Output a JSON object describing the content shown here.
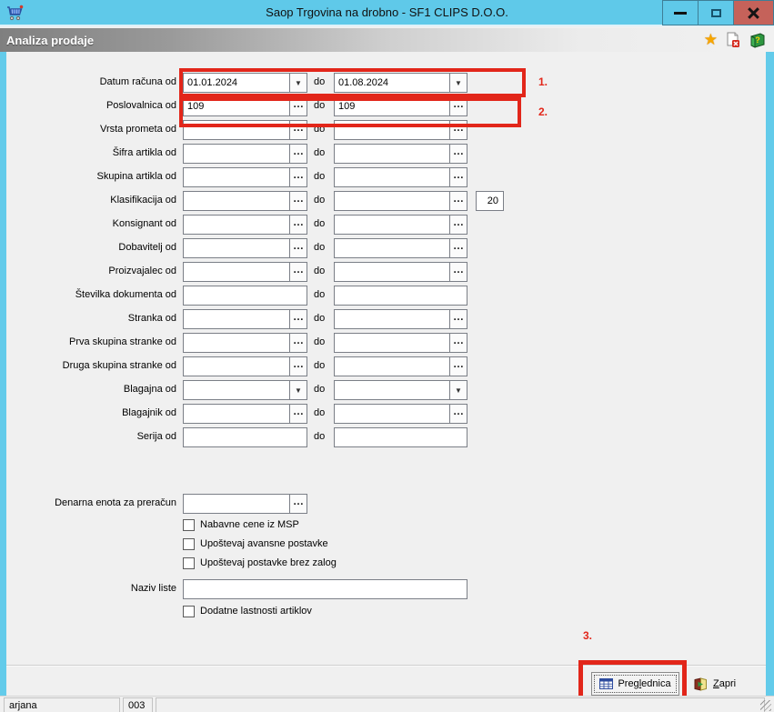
{
  "window": {
    "title": "Saop Trgovina na drobno - SF1 CLIPS D.O.O."
  },
  "header": {
    "title": "Analiza prodaje"
  },
  "icons": {
    "ellipsis": "…",
    "dropdown": "▼"
  },
  "form": {
    "do_label": "do",
    "rows": [
      {
        "label": "Datum računa od",
        "type": "combo",
        "value_from": "01.01.2024",
        "value_to": "01.08.2024"
      },
      {
        "label": "Poslovalnica od",
        "type": "lookup",
        "value_from": "109",
        "value_to": "109"
      },
      {
        "label": "Vrsta prometa od",
        "type": "lookup",
        "value_from": "",
        "value_to": ""
      },
      {
        "label": "Šifra artikla od",
        "type": "lookup",
        "value_from": "",
        "value_to": ""
      },
      {
        "label": "Skupina artikla od",
        "type": "lookup",
        "value_from": "",
        "value_to": ""
      },
      {
        "label": "Klasifikacija od",
        "type": "lookup",
        "value_from": "",
        "value_to": "",
        "extra_value": "20"
      },
      {
        "label": "Konsignant od",
        "type": "lookup",
        "value_from": "",
        "value_to": ""
      },
      {
        "label": "Dobavitelj od",
        "type": "lookup",
        "value_from": "",
        "value_to": ""
      },
      {
        "label": "Proizvajalec od",
        "type": "lookup",
        "value_from": "",
        "value_to": ""
      },
      {
        "label": "Številka dokumenta od",
        "type": "text",
        "value_from": "",
        "value_to": ""
      },
      {
        "label": "Stranka od",
        "type": "lookup",
        "value_from": "",
        "value_to": ""
      },
      {
        "label": "Prva skupina stranke od",
        "type": "lookup",
        "value_from": "",
        "value_to": ""
      },
      {
        "label": "Druga skupina stranke od",
        "type": "lookup",
        "value_from": "",
        "value_to": ""
      },
      {
        "label": "Blagajna od",
        "type": "combo",
        "value_from": "",
        "value_to": ""
      },
      {
        "label": "Blagajnik od",
        "type": "lookup",
        "value_from": "",
        "value_to": ""
      },
      {
        "label": "Serija od",
        "type": "text",
        "value_from": "",
        "value_to": ""
      }
    ],
    "currency": {
      "label": "Denarna enota za preračun",
      "value": ""
    },
    "checkboxes": [
      {
        "label": "Nabavne cene iz MSP",
        "checked": false
      },
      {
        "label": "Upoštevaj avansne postavke",
        "checked": false
      },
      {
        "label": "Upoštevaj postavke brez zalog",
        "checked": false
      }
    ],
    "list_name": {
      "label": "Naziv liste",
      "value": ""
    },
    "extra_checkbox": {
      "label": "Dodatne lastnosti artiklov",
      "checked": false
    }
  },
  "annotations": {
    "step1": "1.",
    "step2": "2.",
    "step3": "3.",
    "highlight_color": "#e2261a"
  },
  "buttons": {
    "preglednica": {
      "pre": "Preg",
      "mn": "l",
      "post": "ednica"
    },
    "zapri": {
      "pre": "",
      "mn": "Z",
      "post": "apri"
    }
  },
  "statusbar": {
    "user": "arjana",
    "store": "003"
  }
}
